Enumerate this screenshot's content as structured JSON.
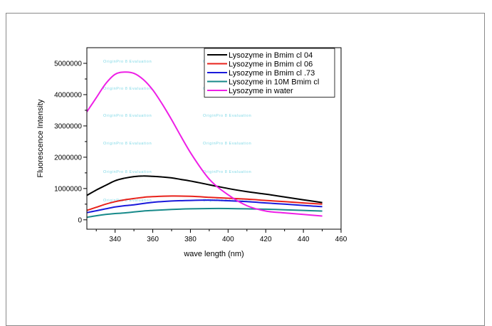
{
  "watermark": "OriginPro 8 Evaluation",
  "chart_data": {
    "type": "line",
    "xlabel": "wave length (nm)",
    "ylabel": "Fluorescence Intensity",
    "xlim": [
      325,
      460
    ],
    "ylim": [
      -300000,
      5500000
    ],
    "xticks": [
      340,
      360,
      380,
      400,
      420,
      440,
      460
    ],
    "yticks": [
      0,
      1000000,
      2000000,
      3000000,
      4000000,
      5000000
    ],
    "xtick_labels": [
      "340",
      "360",
      "380",
      "400",
      "420",
      "440",
      "460"
    ],
    "ytick_labels": [
      "0",
      "1000000",
      "2000000",
      "3000000",
      "4000000",
      "5000000"
    ],
    "grid": false,
    "legend_position": "top-right",
    "series": [
      {
        "name": "Lysozyme in Bmim cl 04",
        "color": "#000000",
        "x": [
          325,
          330,
          335,
          340,
          345,
          350,
          355,
          360,
          365,
          370,
          375,
          380,
          390,
          400,
          410,
          420,
          430,
          440,
          450
        ],
        "y": [
          780000,
          950000,
          1100000,
          1250000,
          1330000,
          1380000,
          1400000,
          1390000,
          1370000,
          1340000,
          1290000,
          1240000,
          1120000,
          1000000,
          900000,
          820000,
          730000,
          640000,
          550000
        ]
      },
      {
        "name": "Lysozyme in Bmim cl 06",
        "color": "#e8221b",
        "x": [
          325,
          330,
          335,
          340,
          345,
          350,
          355,
          360,
          370,
          380,
          390,
          400,
          410,
          420,
          430,
          440,
          450
        ],
        "y": [
          300000,
          400000,
          500000,
          580000,
          640000,
          680000,
          720000,
          740000,
          760000,
          750000,
          720000,
          690000,
          660000,
          620000,
          580000,
          540000,
          500000
        ]
      },
      {
        "name": "Lysozyme in Bmim cl .73",
        "color": "#1a1adb",
        "x": [
          325,
          330,
          335,
          340,
          345,
          350,
          355,
          360,
          370,
          380,
          390,
          400,
          410,
          420,
          430,
          440,
          450
        ],
        "y": [
          230000,
          290000,
          350000,
          410000,
          450000,
          480000,
          520000,
          560000,
          600000,
          620000,
          630000,
          610000,
          580000,
          540000,
          500000,
          460000,
          420000
        ]
      },
      {
        "name": "Lysozyme in 10M Bmim cl",
        "color": "#178a8a",
        "x": [
          325,
          330,
          335,
          340,
          345,
          350,
          355,
          360,
          370,
          380,
          390,
          400,
          410,
          420,
          430,
          440,
          450
        ],
        "y": [
          80000,
          130000,
          170000,
          200000,
          220000,
          250000,
          280000,
          300000,
          330000,
          350000,
          360000,
          360000,
          350000,
          340000,
          320000,
          300000,
          280000
        ]
      },
      {
        "name": "Lysozyme in water",
        "color": "#ee1fe6",
        "x": [
          325,
          330,
          335,
          340,
          345,
          350,
          355,
          360,
          365,
          370,
          380,
          390,
          400,
          410,
          420,
          430,
          440,
          450
        ],
        "y": [
          3450000,
          3900000,
          4350000,
          4650000,
          4720000,
          4680000,
          4480000,
          4150000,
          3700000,
          3200000,
          2150000,
          1300000,
          800000,
          450000,
          280000,
          220000,
          170000,
          120000
        ]
      }
    ]
  }
}
